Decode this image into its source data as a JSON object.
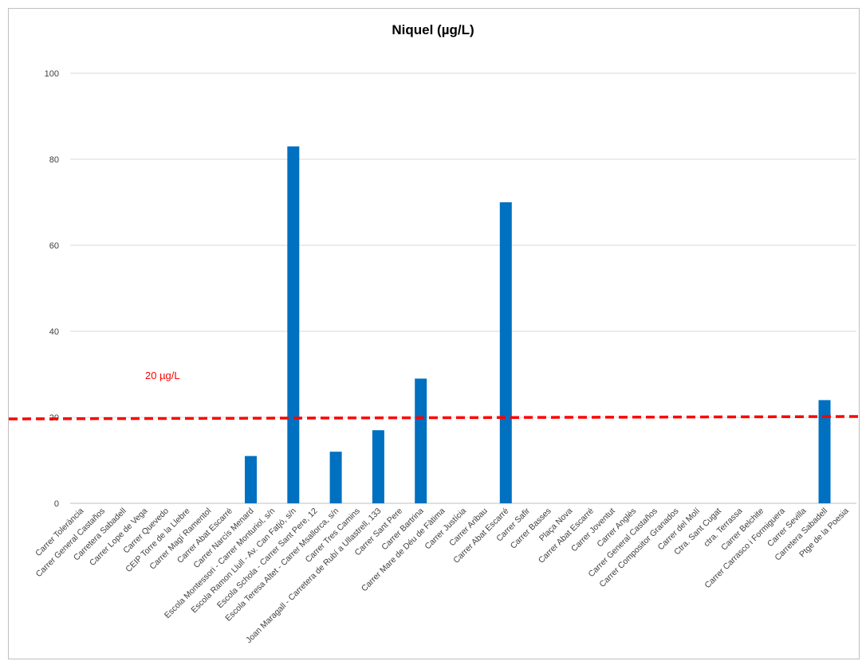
{
  "chart_data": {
    "type": "bar",
    "title": "Niquel (µg/L)",
    "xlabel": "",
    "ylabel": "",
    "ylim": [
      0,
      100
    ],
    "yticks": [
      0,
      20,
      40,
      60,
      80,
      100
    ],
    "grid": true,
    "legend": "none",
    "bar_color": "#0070c0",
    "categories": [
      "Carrer Tolerància",
      "Carrer General Castaños",
      "Carretera Sabadell",
      "Carrer Lope de Vega",
      "Carrer Quevedo",
      "CEIP Torre de la Llebre",
      "Carrer Magí Ramentol",
      "Carrer Abat Escarré",
      "Carrer Narcís Menard",
      "Escola Montessori - Carrer Monturiol, s/n",
      "Escola Ramon Llull - Av. Can Fatjó, s/n",
      "Escola Schola - Carrer Sant Pere, 12",
      "Escola Teresa Altet - Carrer Msallorca, s/n",
      "Carrer Tres Camins",
      "Joan Maragall - Carretera de Rubí a Ullastrell, 133",
      "Carrer Sant Pere",
      "Carrer Bartrina",
      "Carrer Mare de Déu de Fàtima",
      "Carrer Justícia",
      "Carrer Aribau",
      "Carrer Abat Escarré",
      "Carrer Safir",
      "Carrer Basses",
      "Plaça Nova",
      "Carrer Abat Escarré",
      "Carrer Joventut",
      "Carrer Anglès",
      "Carrer General Castaños",
      "Carrer Compositor Granados",
      "Carrer del Molí",
      "Ctra. Sant Cugat",
      "ctra. Terrassa",
      "Carrer Belchite",
      "Carrer Carrasco i Formiguera",
      "Carrer Sevilla",
      "Carretera Sabadell",
      "Ptge de la Poesia"
    ],
    "values": [
      0,
      0,
      0,
      0,
      0,
      0,
      0,
      0,
      11,
      0,
      83,
      0,
      12,
      0,
      17,
      0,
      29,
      0,
      0,
      0,
      70,
      0,
      0,
      0,
      0,
      0,
      0,
      0,
      0,
      0,
      0,
      0,
      0,
      0,
      0,
      24,
      0
    ],
    "threshold": {
      "value": 20,
      "label": "20 µg/L",
      "color": "#ff0000",
      "style": "dashed"
    }
  }
}
